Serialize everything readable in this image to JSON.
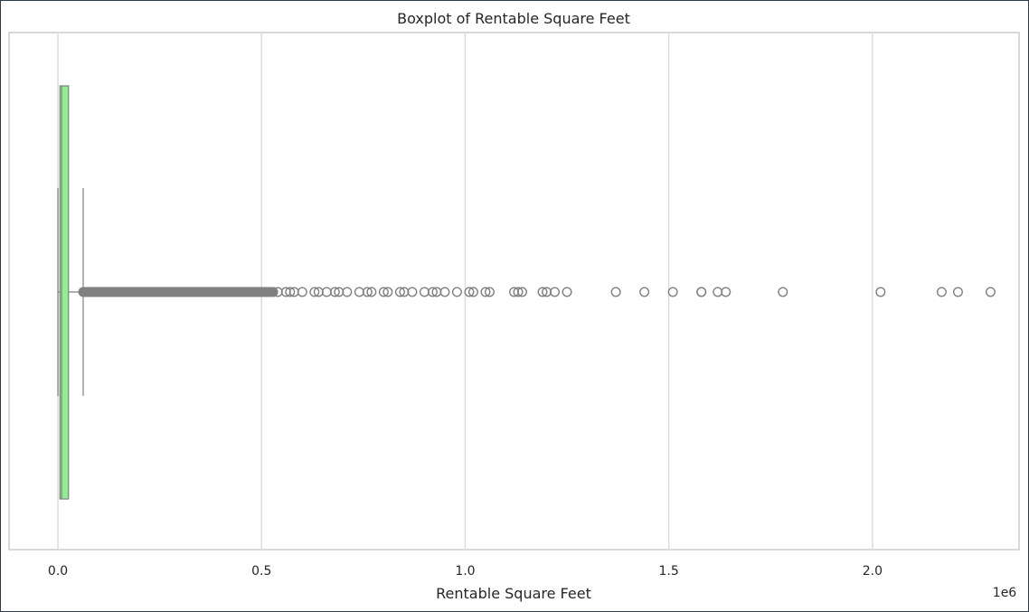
{
  "chart_data": {
    "type": "boxplot",
    "orientation": "horizontal",
    "title": "Boxplot of Rentable Square Feet",
    "xlabel": "Rentable Square Feet",
    "ylabel": "",
    "x_multiplier_label": "1e6",
    "xlim": [
      -0.12,
      2.36
    ],
    "xticks": [
      0.0,
      0.5,
      1.0,
      1.5,
      2.0
    ],
    "xtick_labels": [
      "0.0",
      "0.5",
      "1.0",
      "1.5",
      "2.0"
    ],
    "grid": "vertical",
    "box_color": "#90ee90",
    "edge_color": "#808080",
    "box": {
      "whisker_low": 0.0,
      "q1": 0.005,
      "median": 0.009,
      "q3": 0.026,
      "whisker_high": 0.062
    },
    "dense_outlier_range": [
      0.062,
      0.53
    ],
    "outliers": [
      0.54,
      0.56,
      0.57,
      0.58,
      0.6,
      0.63,
      0.64,
      0.66,
      0.68,
      0.69,
      0.71,
      0.74,
      0.76,
      0.77,
      0.8,
      0.81,
      0.84,
      0.85,
      0.87,
      0.9,
      0.92,
      0.93,
      0.95,
      0.98,
      1.01,
      1.02,
      1.05,
      1.06,
      1.12,
      1.13,
      1.14,
      1.19,
      1.2,
      1.22,
      1.25,
      1.37,
      1.44,
      1.51,
      1.58,
      1.58,
      1.62,
      1.64,
      1.78,
      2.02,
      2.17,
      2.21,
      2.29
    ]
  }
}
